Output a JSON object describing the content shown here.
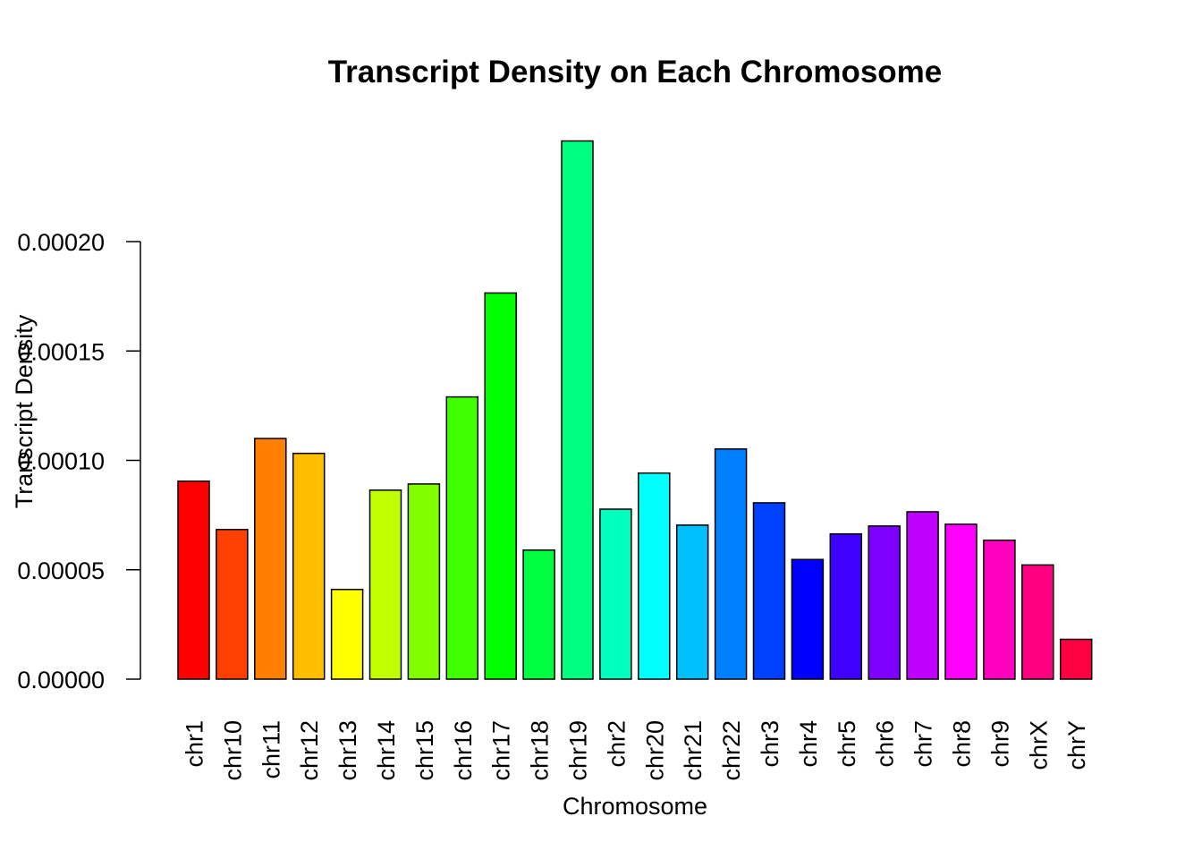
{
  "chart_data": {
    "type": "bar",
    "title": "Transcript Density on Each Chromosome",
    "xlabel": "Chromosome",
    "ylabel": "Transcript Density",
    "ylim": [
      0,
      0.00025
    ],
    "yticks": [
      "0.00000",
      "0.00005",
      "0.00010",
      "0.00015",
      "0.00020"
    ],
    "ytick_values": [
      0,
      5e-05,
      0.0001,
      0.00015,
      0.0002
    ],
    "grid": false,
    "categories": [
      "chr1",
      "chr10",
      "chr11",
      "chr12",
      "chr13",
      "chr14",
      "chr15",
      "chr16",
      "chr17",
      "chr18",
      "chr19",
      "chr2",
      "chr20",
      "chr21",
      "chr22",
      "chr3",
      "chr4",
      "chr5",
      "chr6",
      "chr7",
      "chr8",
      "chr9",
      "chrX",
      "chrY"
    ],
    "values": [
      9.05e-05,
      6.84e-05,
      0.00011,
      0.0001032,
      4.1e-05,
      8.64e-05,
      8.92e-05,
      0.000129,
      0.0001765,
      5.9e-05,
      0.000246,
      7.77e-05,
      9.42e-05,
      7.04e-05,
      0.0001052,
      8.06e-05,
      5.47e-05,
      6.64e-05,
      7e-05,
      7.65e-05,
      7.08e-05,
      6.35e-05,
      5.22e-05,
      1.82e-05
    ],
    "colors": [
      "#FF0000",
      "#FF4000",
      "#FF8000",
      "#FFBF00",
      "#FFFF00",
      "#BFFF00",
      "#80FF00",
      "#40FF00",
      "#00FF00",
      "#00FF40",
      "#00FF80",
      "#00FFBF",
      "#00FFFF",
      "#00BFFF",
      "#0080FF",
      "#0040FF",
      "#0000FF",
      "#4000FF",
      "#8000FF",
      "#BF00FF",
      "#FF00FF",
      "#FF00BF",
      "#FF0080",
      "#FF0040"
    ]
  }
}
